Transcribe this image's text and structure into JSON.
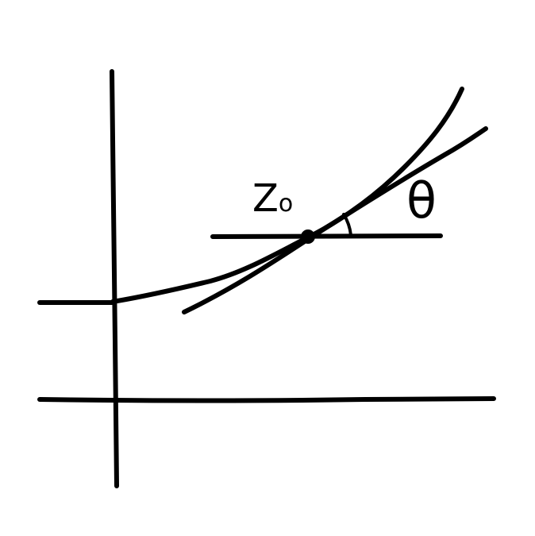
{
  "labels": {
    "point": "Z",
    "point_subscript": "o",
    "angle": "θ"
  },
  "style": {
    "ink": "#000000",
    "paper": "#ffffff"
  }
}
